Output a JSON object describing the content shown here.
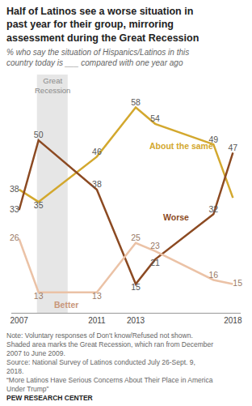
{
  "chart_data": {
    "type": "line",
    "title": "Half of Latinos see a worse situation in past year for their group, mirroring assessment during the Great Recession",
    "subtitle": "% who say the situation of Hispanics/Latinos in this country today is ___ compared with one year ago",
    "x": [
      2007,
      2008,
      2011,
      2013,
      2014,
      2017,
      2018
    ],
    "series": [
      {
        "name": "About the same",
        "color": "#D3A82E",
        "values": [
          38,
          35,
          46,
          58,
          54,
          49,
          36
        ],
        "value_labels": [
          "38",
          "35",
          "46",
          "58",
          "54",
          "49",
          null
        ]
      },
      {
        "name": "Worse",
        "color": "#8C4A22",
        "values": [
          33,
          50,
          38,
          15,
          21,
          32,
          47
        ],
        "value_labels": [
          "33",
          "50",
          "38",
          "15",
          "21",
          "32",
          "47"
        ]
      },
      {
        "name": "Better",
        "color": "#EBC2A6",
        "values": [
          26,
          13,
          13,
          25,
          23,
          16,
          15
        ],
        "value_labels": [
          "26",
          "13",
          "13",
          "25",
          "23",
          "16",
          "15"
        ]
      }
    ],
    "xlim": [
      2006.6,
      2018.4
    ],
    "xticks": [
      2007,
      2011,
      2013,
      2018
    ],
    "ylim": [
      8,
      66
    ],
    "grid": false,
    "data_labels": true,
    "tick_labels": "x",
    "line_style": "solid",
    "shaded": {
      "label": "Great Recession",
      "start": 2007.92,
      "end": 2009.5
    },
    "notes": [
      "Note: Voluntary responses of Don't know/Refused not shown.",
      "Shaded area marks the Great Recession, which ran from December 2007 to June 2009."
    ],
    "source": [
      "Source: National Survey of Latinos conducted July 26-Sept. 9, 2018.",
      "“More Latinos Have Serious Concerns About Their Place in America Under Trump”"
    ],
    "credit": "PEW RESEARCH CENTER"
  }
}
